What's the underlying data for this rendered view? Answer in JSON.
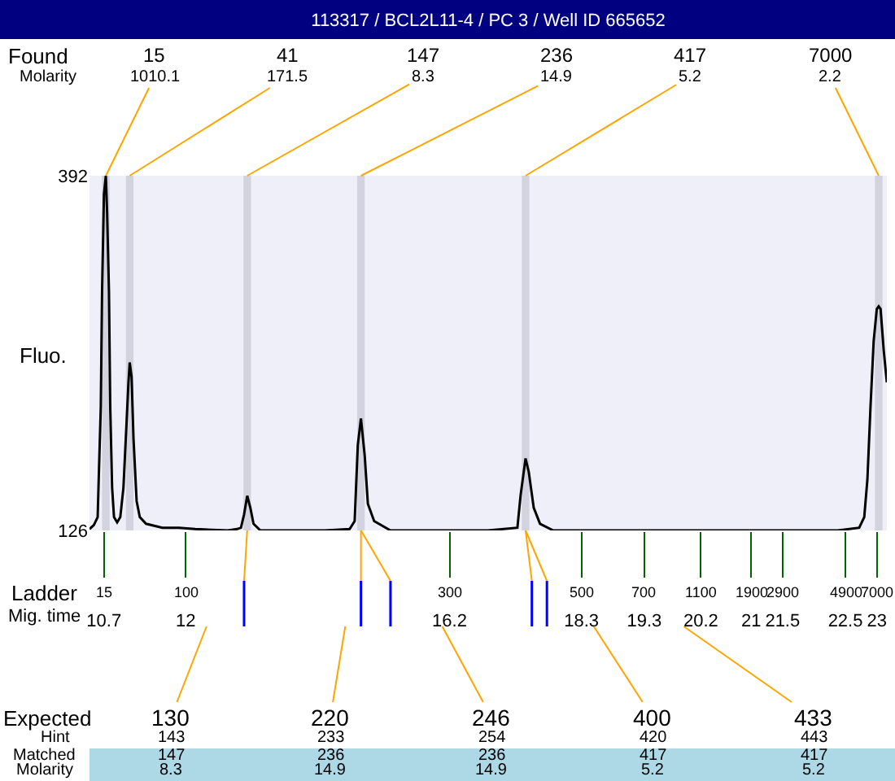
{
  "chart_data": {
    "type": "line",
    "title": "113317 / BCL2L11-4 / PC 3 / Well ID 665652",
    "ylabel": "Fluo.",
    "xlim": [
      10.47,
      23.16
    ],
    "ylim": [
      126,
      392
    ],
    "yticks": [
      126,
      392
    ],
    "xticks": [
      10.7,
      12,
      16.2,
      18.3,
      19.3,
      20.2,
      21,
      21.5,
      22.5,
      23
    ],
    "grid": false,
    "series": [
      {
        "color": "#000000",
        "x": [
          10.47,
          10.54,
          10.6,
          10.62,
          10.65,
          10.67,
          10.7,
          10.73,
          10.75,
          10.78,
          10.8,
          10.83,
          10.86,
          10.91,
          10.96,
          11.01,
          11.06,
          11.09,
          11.11,
          11.14,
          11.17,
          11.22,
          11.27,
          11.37,
          11.63,
          11.89,
          12.15,
          12.67,
          12.82,
          12.88,
          12.93,
          12.98,
          13.03,
          13.08,
          13.19,
          14.22,
          14.61,
          14.69,
          14.74,
          14.79,
          14.85,
          14.9,
          15,
          15.26,
          16.04,
          16.81,
          17.28,
          17.33,
          17.41,
          17.46,
          17.54,
          17.64,
          17.85,
          19.4,
          22.38,
          22.72,
          22.8,
          22.85,
          22.9,
          22.95,
          23,
          23.03,
          23.06,
          23.11,
          23.16
        ],
        "values": [
          127,
          130,
          136,
          170,
          219,
          305,
          378,
          392,
          365,
          305,
          219,
          158,
          136,
          132,
          136,
          158,
          207,
          237,
          252,
          241,
          195,
          148,
          136,
          131,
          128,
          128,
          127,
          126,
          127,
          128,
          138,
          152,
          143,
          131,
          126,
          126,
          127,
          133,
          190,
          210,
          182,
          146,
          133,
          126,
          126,
          126,
          128,
          152,
          180,
          170,
          143,
          131,
          126,
          126,
          126,
          128,
          136,
          164,
          219,
          268,
          292,
          294,
          292,
          261,
          237
        ]
      }
    ],
    "bands": [
      {
        "axis": "x",
        "from": 10.67,
        "to": 10.79,
        "color": "#d3d3e0"
      },
      {
        "axis": "x",
        "from": 11.05,
        "to": 11.17,
        "color": "#d3d3e0"
      },
      {
        "axis": "x",
        "from": 12.92,
        "to": 13.04,
        "color": "#d3d3e0"
      },
      {
        "axis": "x",
        "from": 14.73,
        "to": 14.85,
        "color": "#d3d3e0"
      },
      {
        "axis": "x",
        "from": 17.35,
        "to": 17.47,
        "color": "#d3d3e0"
      },
      {
        "axis": "x",
        "from": 22.97,
        "to": 23.09,
        "color": "#d3d3e0"
      }
    ],
    "annotations": [
      "Found",
      "Molarity",
      "Ladder",
      "Mig. time",
      "Expected",
      "Hint",
      "Matched",
      "Molarity",
      "15",
      {
        "text": "1010.1",
        "x": 10.73,
        "y": 392
      },
      "41",
      {
        "text": "171.5",
        "x": 11.11,
        "y": 392
      },
      "147",
      {
        "text": "8.3",
        "x": 12.98,
        "y": 392
      },
      "236",
      {
        "text": "14.9",
        "x": 14.79,
        "y": 392
      },
      "417",
      {
        "text": "5.2",
        "x": 17.41,
        "y": 392
      },
      "7000",
      {
        "text": "2.2",
        "x": 23.03,
        "y": 392
      },
      "15",
      "100",
      "300",
      "500",
      "700",
      "1100",
      "1900",
      "2900",
      "4900",
      "7000",
      {
        "text": "130",
        "x": 12.93,
        "y": 126
      },
      "143",
      "147",
      "8.3",
      {
        "text": "220",
        "x": 14.79,
        "y": 126
      },
      "233",
      "236",
      "14.9",
      {
        "text": "246",
        "x": 15.26,
        "y": 126
      },
      "254",
      "236",
      "14.9",
      {
        "text": "400",
        "x": 17.51,
        "y": 126
      },
      "420",
      "417",
      "5.2",
      {
        "text": "433",
        "x": 17.75,
        "y": 126
      },
      "443",
      "417",
      "5.2"
    ]
  }
}
